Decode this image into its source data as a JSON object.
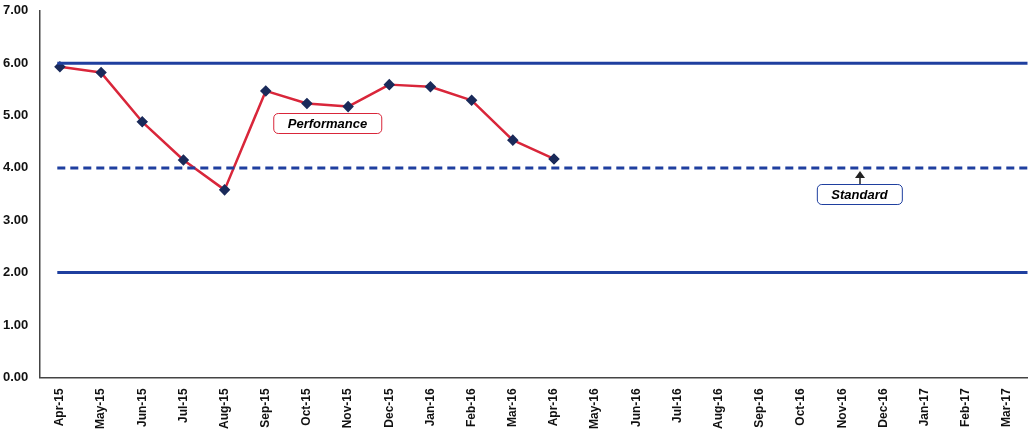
{
  "chart_data": {
    "type": "line",
    "categories": [
      "Apr-15",
      "May-15",
      "Jun-15",
      "Jul-15",
      "Aug-15",
      "Sep-15",
      "Oct-15",
      "Nov-15",
      "Dec-15",
      "Jan-16",
      "Feb-16",
      "Mar-16",
      "Apr-16",
      "May-16",
      "Jun-16",
      "Jul-16",
      "Aug-16",
      "Sep-16",
      "Oct-16",
      "Nov-16",
      "Dec-16",
      "Jan-17",
      "Feb-17",
      "Mar-17"
    ],
    "series": [
      {
        "name": "Performance",
        "color": "#d9263a",
        "values": [
          5.93,
          5.82,
          4.88,
          4.15,
          3.58,
          5.47,
          5.23,
          5.17,
          5.59,
          5.55,
          5.29,
          4.53,
          4.17,
          null,
          null,
          null,
          null,
          null,
          null,
          null,
          null,
          null,
          null,
          null
        ]
      }
    ],
    "ylim": [
      0,
      7
    ],
    "yticks": [
      {
        "value": 0,
        "label": "0.00"
      },
      {
        "value": 1,
        "label": "1.00"
      },
      {
        "value": 2,
        "label": "2.00"
      },
      {
        "value": 3,
        "label": "3.00"
      },
      {
        "value": 4,
        "label": "4.00"
      },
      {
        "value": 5,
        "label": "5.00"
      },
      {
        "value": 6,
        "label": "6.00"
      },
      {
        "value": 7,
        "label": "7.00"
      }
    ],
    "ref_lines": [
      {
        "axis": "y",
        "value": 6,
        "color": "#1f3f9f",
        "line_style": "solid"
      },
      {
        "axis": "y",
        "value": 4,
        "color": "#1f3f9f",
        "line_style": "dashed",
        "label": "Standard"
      },
      {
        "axis": "y",
        "value": 2,
        "color": "#1f3f9f",
        "line_style": "solid"
      }
    ],
    "grid": false,
    "legend": false,
    "marker": "diamond",
    "line_style": "solid"
  }
}
